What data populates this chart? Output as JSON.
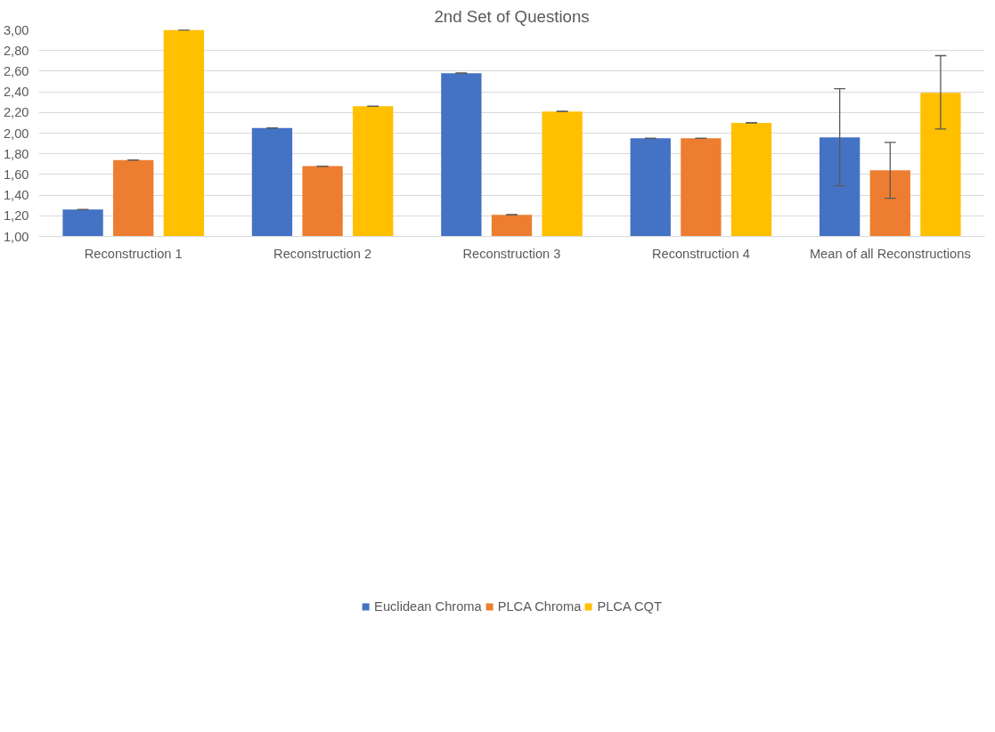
{
  "chart_data": {
    "type": "bar",
    "title": "2nd Set of Questions",
    "categories": [
      "Reconstruction 1",
      "Reconstruction 2",
      "Reconstruction 3",
      "Reconstruction 4",
      "Mean of all Reconstructions"
    ],
    "series": [
      {
        "name": "Euclidean Chroma",
        "color": "#4472c4",
        "values": [
          1.26,
          2.05,
          2.58,
          1.95,
          1.96
        ],
        "errors": [
          0,
          0,
          0,
          0,
          [
            1.49,
            2.43
          ]
        ]
      },
      {
        "name": "PLCA Chroma",
        "color": "#ed7d31",
        "values": [
          1.74,
          1.68,
          1.21,
          1.95,
          1.64
        ],
        "errors": [
          0,
          0,
          0,
          0,
          [
            1.37,
            1.91
          ]
        ]
      },
      {
        "name": "PLCA CQT",
        "color": "#ffc000",
        "values": [
          3.0,
          2.26,
          2.21,
          2.1,
          2.39
        ],
        "errors": [
          0,
          0,
          0,
          0,
          [
            2.04,
            2.75
          ]
        ]
      }
    ],
    "ylim": [
      1,
      3
    ],
    "yticks": [
      {
        "value": 1,
        "label": "1,00"
      },
      {
        "value": 1.2,
        "label": "1,20"
      },
      {
        "value": 1.4,
        "label": "1,40"
      },
      {
        "value": 1.6,
        "label": "1,60"
      },
      {
        "value": 1.8,
        "label": "1,80"
      },
      {
        "value": 2,
        "label": "2,00"
      },
      {
        "value": 2.2,
        "label": "2,20"
      },
      {
        "value": 2.4,
        "label": "2,40"
      },
      {
        "value": 2.6,
        "label": "2,60"
      },
      {
        "value": 2.8,
        "label": "2,80"
      },
      {
        "value": 3,
        "label": "3,00"
      }
    ],
    "grid": "y",
    "legend": "bottom"
  }
}
